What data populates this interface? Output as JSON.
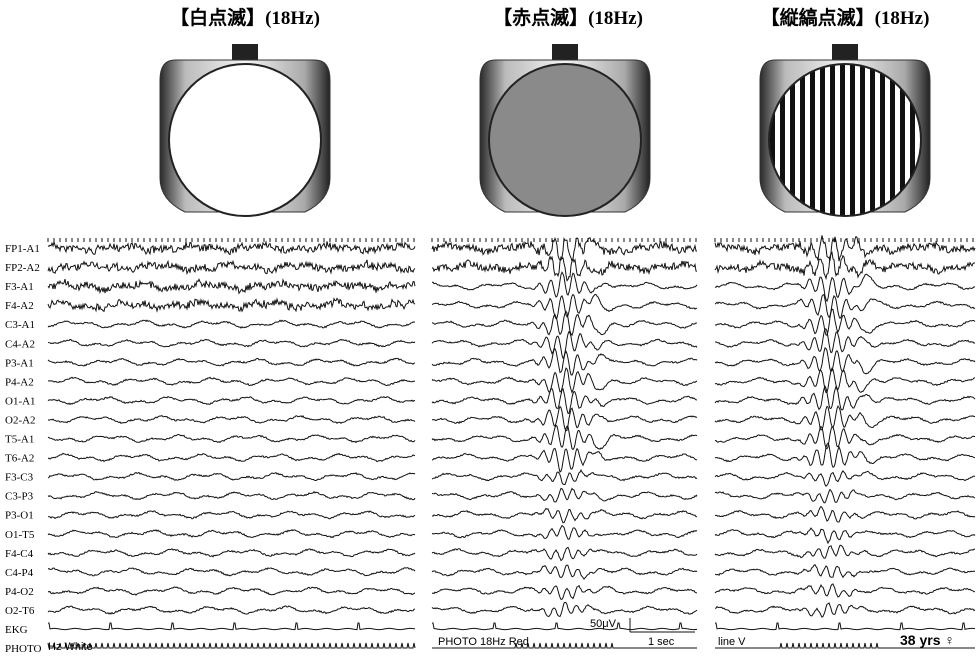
{
  "panels": [
    {
      "title": "【白点滅】(18Hz)",
      "stimulus_label": "Hz White"
    },
    {
      "title": "【赤点滅】(18Hz)",
      "stimulus_label": "PHOTO 18Hz Red",
      "scale_amplitude": "50μV",
      "scale_time": "1 sec"
    },
    {
      "title": "【縦縞点滅】(18Hz)",
      "stimulus_label": "line V",
      "patient": "38 yrs ♀"
    }
  ],
  "channels": [
    "FP1-A1",
    "FP2-A2",
    "F3-A1",
    "F4-A2",
    "C3-A1",
    "C4-A2",
    "P3-A1",
    "P4-A2",
    "O1-A1",
    "O2-A2",
    "T5-A1",
    "T6-A2",
    "F3-C3",
    "C3-P3",
    "P3-O1",
    "O1-T5",
    "F4-C4",
    "C4-P4",
    "P4-O2",
    "O2-T6",
    "EKG",
    "PHOTO"
  ]
}
